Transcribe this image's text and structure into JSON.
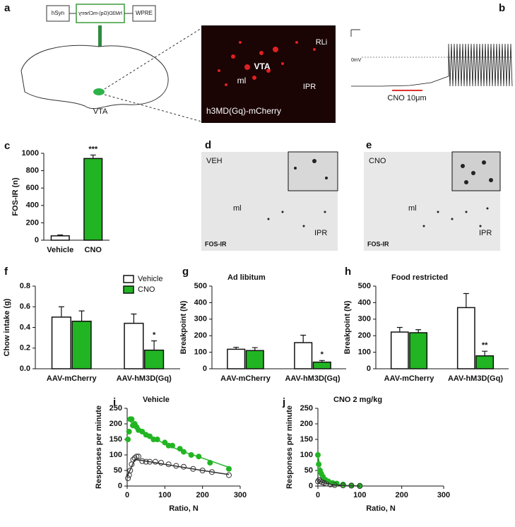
{
  "panels": {
    "a": {
      "letter": "a",
      "vector_left": "hSyn",
      "vector_mid": "hM3D(Gq)-mCherry",
      "vector_right": "WPRE",
      "region": "VTA",
      "image_labels": [
        "RLi",
        "VTA",
        "ml",
        "IPR",
        "h3MD(Gq)-mCherry"
      ]
    },
    "b": {
      "letter": "b",
      "voltage": "0mV",
      "drug": "CNO 10μm"
    },
    "d": {
      "letter": "d",
      "labels": [
        "VEH",
        "ml",
        "IPR",
        "FOS-IR"
      ]
    },
    "e": {
      "letter": "e",
      "labels": [
        "CNO",
        "ml",
        "IPR",
        "FOS-IR"
      ]
    }
  },
  "chart_data": [
    {
      "type": "bar",
      "label": "c",
      "categories": [
        "Vehicle",
        "CNO"
      ],
      "values": [
        50,
        940
      ],
      "errors": [
        10,
        40
      ],
      "colors": [
        "#ffffff",
        "#22b523"
      ],
      "value_annotations": [
        null,
        "***"
      ],
      "ylabel": "FOS-IR (n)",
      "ylim": [
        0,
        1000
      ],
      "yticks": [
        0,
        200,
        400,
        600,
        800,
        1000
      ]
    },
    {
      "type": "bar",
      "label": "f",
      "categories": [
        "AAV-mCherry",
        "AAV-hM3D(Gq)"
      ],
      "series": [
        {
          "name": "Vehicle",
          "color": "#ffffff",
          "values": [
            0.5,
            0.44
          ],
          "errors": [
            0.1,
            0.09
          ]
        },
        {
          "name": "CNO",
          "color": "#22b523",
          "values": [
            0.46,
            0.18
          ],
          "errors": [
            0.1,
            0.09
          ],
          "annotations": [
            null,
            "*"
          ]
        }
      ],
      "ylabel": "Chow intake (g)",
      "ylim": [
        0,
        0.8
      ],
      "yticks": [
        {
          "value": 0,
          "label": "0.0"
        },
        0.2,
        0.4,
        0.6,
        0.8
      ],
      "legend": "upper right"
    },
    {
      "type": "bar",
      "label": "g",
      "title": "Ad libitum",
      "categories": [
        "AAV-mCherry",
        "AAV-hM3D(Gq)"
      ],
      "series": [
        {
          "color": "#ffffff",
          "values": [
            118,
            158
          ],
          "errors": [
            12,
            45
          ]
        },
        {
          "color": "#22b523",
          "values": [
            110,
            40
          ],
          "errors": [
            18,
            10
          ],
          "annotations": [
            null,
            "*"
          ]
        }
      ],
      "ylabel": "Breakpoint (N)",
      "ylim": [
        0,
        500
      ],
      "yticks": [
        0,
        100,
        200,
        300,
        400,
        500
      ]
    },
    {
      "type": "bar",
      "label": "h",
      "title": "Food restricted",
      "categories": [
        "AAV-mCherry",
        "AAV-hM3D(Gq)"
      ],
      "series": [
        {
          "color": "#ffffff",
          "values": [
            222,
            370
          ],
          "errors": [
            28,
            85
          ]
        },
        {
          "color": "#22b523",
          "values": [
            218,
            78
          ],
          "errors": [
            18,
            28
          ],
          "annotations": [
            null,
            "**"
          ]
        }
      ],
      "ylabel": "Breakpoint (N)",
      "ylim": [
        0,
        500
      ],
      "yticks": [
        0,
        100,
        200,
        300,
        400,
        500
      ]
    },
    {
      "type": "scatter",
      "label": "i",
      "title": "Vehicle",
      "xlabel": "Ratio, N",
      "ylabel": "Responses per minute",
      "xlim": [
        0,
        300
      ],
      "xticks": [
        0,
        100,
        200,
        300
      ],
      "ylim": [
        0,
        250
      ],
      "yticks": [
        0,
        50,
        100,
        150,
        200,
        250
      ],
      "series": [
        {
          "color": "#22b523",
          "marker": "filled",
          "x": [
            2,
            5,
            8,
            12,
            15,
            20,
            25,
            30,
            40,
            50,
            60,
            70,
            80,
            100,
            110,
            120,
            140,
            150,
            170,
            190,
            220,
            270
          ],
          "values": [
            150,
            175,
            215,
            215,
            195,
            200,
            190,
            180,
            175,
            165,
            160,
            150,
            150,
            140,
            130,
            130,
            120,
            110,
            100,
            95,
            75,
            55
          ]
        },
        {
          "color": "#333333",
          "marker": "open",
          "x": [
            2,
            5,
            8,
            12,
            16,
            20,
            25,
            30,
            40,
            50,
            60,
            75,
            90,
            110,
            130,
            150,
            175,
            200,
            225,
            270
          ],
          "values": [
            25,
            35,
            50,
            70,
            85,
            90,
            95,
            95,
            80,
            78,
            78,
            78,
            75,
            70,
            65,
            62,
            55,
            50,
            45,
            35
          ]
        },
        {
          "color": "#22b523",
          "style": "line",
          "x": [
            0,
            50,
            100,
            150,
            200,
            270
          ],
          "values": [
            215,
            170,
            135,
            110,
            90,
            60
          ]
        },
        {
          "color": "#333333",
          "style": "line",
          "x": [
            0,
            20,
            40,
            100,
            150,
            200,
            270
          ],
          "values": [
            30,
            85,
            82,
            70,
            60,
            50,
            37
          ]
        }
      ]
    },
    {
      "type": "scatter",
      "label": "j",
      "title": "CNO 2 mg/kg",
      "xlabel": "Ratio, N",
      "ylabel": "Responses per minute",
      "xlim": [
        0,
        300
      ],
      "xticks": [
        0,
        100,
        200,
        300
      ],
      "ylim": [
        0,
        250
      ],
      "yticks": [
        0,
        50,
        100,
        150,
        200,
        250
      ],
      "series": [
        {
          "color": "#22b523",
          "marker": "filled",
          "x": [
            0,
            2,
            5,
            8,
            12,
            18,
            25,
            35,
            45,
            60,
            80,
            100
          ],
          "values": [
            100,
            70,
            50,
            40,
            30,
            20,
            15,
            10,
            8,
            5,
            2,
            1
          ]
        },
        {
          "color": "#333333",
          "marker": "open",
          "x": [
            0,
            3,
            6,
            10,
            15,
            20,
            30,
            40,
            60,
            80,
            100
          ],
          "values": [
            15,
            20,
            15,
            12,
            10,
            8,
            5,
            3,
            2,
            1,
            0
          ]
        },
        {
          "color": "#22b523",
          "style": "line",
          "x": [
            0,
            5,
            10,
            20,
            40,
            60,
            100
          ],
          "values": [
            100,
            60,
            38,
            18,
            6,
            2,
            0
          ]
        },
        {
          "color": "#333333",
          "style": "line",
          "x": [
            0,
            10,
            20,
            40,
            70,
            100
          ],
          "values": [
            18,
            12,
            8,
            4,
            1,
            0
          ]
        }
      ]
    }
  ]
}
